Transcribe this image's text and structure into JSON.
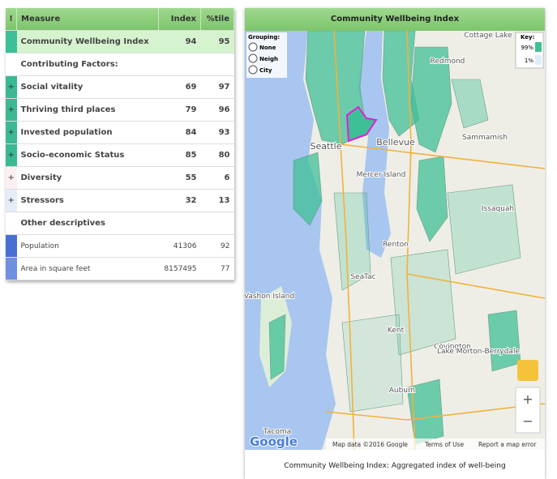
{
  "table": {
    "headers": [
      "!",
      "Measure",
      "Index",
      "%tile"
    ],
    "rows": [
      {
        "marker": "",
        "measure": "Community Wellbeing Index",
        "index": "94",
        "pct": "95"
      },
      {
        "measure": "Contributing Factors:"
      },
      {
        "marker": "+",
        "measure": "Social vitality",
        "index": "69",
        "pct": "97"
      },
      {
        "marker": "+",
        "measure": "Thriving third places",
        "index": "79",
        "pct": "96"
      },
      {
        "marker": "+",
        "measure": "Invested population",
        "index": "84",
        "pct": "93"
      },
      {
        "marker": "+",
        "measure": "Socio-economic Status",
        "index": "85",
        "pct": "80"
      },
      {
        "marker": "+",
        "measure": "Diversity",
        "index": "55",
        "pct": "6"
      },
      {
        "marker": "+",
        "measure": "Stressors",
        "index": "32",
        "pct": "13"
      },
      {
        "measure": "Other descriptives"
      },
      {
        "marker": "",
        "measure": "Population",
        "index": "41306",
        "pct": "92"
      },
      {
        "marker": "",
        "measure": "Area in square feet",
        "index": "8157495",
        "pct": "77"
      }
    ]
  },
  "map": {
    "title": "Community Wellbeing Index",
    "grouping": "Grouping:",
    "options": [
      "None",
      "Neigh",
      "City"
    ],
    "key": "Key:",
    "key_high": "99%",
    "key_low": "1%",
    "labels": [
      "Cottage Lake",
      "Redmond",
      "Bellevue",
      "Seattle",
      "Sammamish",
      "Mercer Island",
      "Issaquah",
      "Renton",
      "SeaTac",
      "Vashon Island",
      "Kent",
      "Covington",
      "Lake Morton-Berrydale",
      "Auburn",
      "Tacoma"
    ],
    "logo": "Google",
    "attribution": "Map data ©2016 Google",
    "terms": "Terms of Use",
    "report": "Report a map error",
    "zoom_in": "+",
    "zoom_out": "−",
    "caption": "Community Wellbeing Index: Aggregated index of well-being"
  }
}
